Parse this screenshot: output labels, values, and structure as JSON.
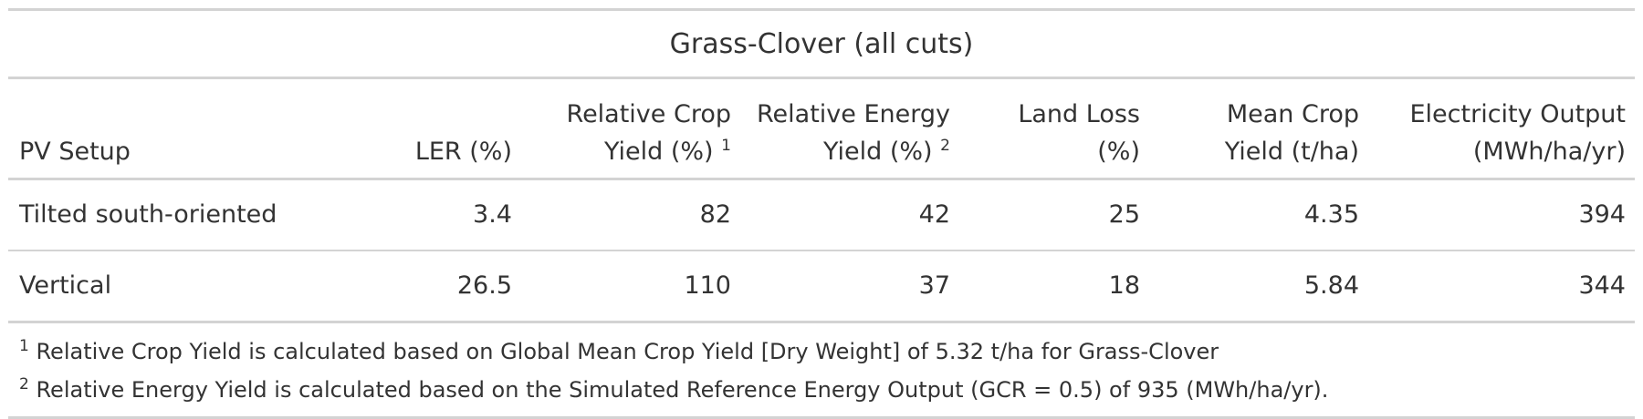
{
  "table": {
    "title": "Grass-Clover (all cuts)",
    "headers": {
      "pv_setup": "PV Setup",
      "ler": "LER (%)",
      "rel_crop_line1": "Relative Crop",
      "rel_crop_line2": "Yield (%)",
      "rel_crop_mark": "1",
      "rel_energy_line1": "Relative Energy",
      "rel_energy_line2": "Yield (%)",
      "rel_energy_mark": "2",
      "land_loss_line1": "Land Loss",
      "land_loss_line2": "(%)",
      "mean_crop_line1": "Mean Crop",
      "mean_crop_line2": "Yield (t/ha)",
      "elec_line1": "Electricity Output",
      "elec_line2": "(MWh/ha/yr)"
    },
    "rows": [
      {
        "pv_setup": "Tilted south-oriented",
        "ler": "3.4",
        "rel_crop": "82",
        "rel_energy": "42",
        "land_loss": "25",
        "mean_crop": "4.35",
        "elec": "394"
      },
      {
        "pv_setup": "Vertical",
        "ler": "26.5",
        "rel_crop": "110",
        "rel_energy": "37",
        "land_loss": "18",
        "mean_crop": "5.84",
        "elec": "344"
      }
    ],
    "footnotes": [
      {
        "mark": "1",
        "text": " Relative Crop Yield is calculated based on Global Mean Crop Yield [Dry Weight] of 5.32 t/ha for Grass-Clover"
      },
      {
        "mark": "2",
        "text": " Relative Energy Yield is calculated based on the Simulated Reference Energy Output (GCR = 0.5) of 935 (MWh/ha/yr)."
      }
    ]
  }
}
